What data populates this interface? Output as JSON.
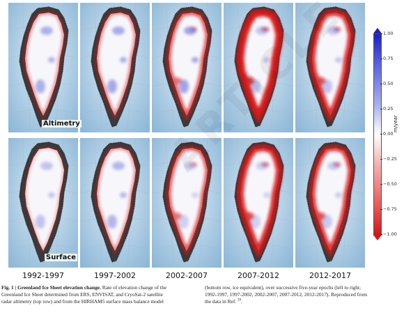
{
  "figure": {
    "row_labels": {
      "top": "Altimetry",
      "bottom": "Surface"
    },
    "epochs": [
      "1992-1997",
      "1997-2002",
      "2002-2007",
      "2007-2012",
      "2012-2017"
    ],
    "colorbar": {
      "unit": "m/year",
      "ticks": [
        "1.00",
        "0.75",
        "0.50",
        "0.25",
        "0.00",
        "−0.25",
        "−0.50",
        "−0.75",
        "−1.00"
      ],
      "colors": {
        "positive": "#1a22c8",
        "zero": "#ffffff",
        "negative": "#d61414"
      }
    },
    "panels": {
      "altimetry": [
        {
          "epoch": "1992-1997",
          "thinning_level": 0.3,
          "thickening_level": 0.3
        },
        {
          "epoch": "1997-2002",
          "thinning_level": 0.35,
          "thickening_level": 0.35
        },
        {
          "epoch": "2002-2007",
          "thinning_level": 0.55,
          "thickening_level": 0.4
        },
        {
          "epoch": "2007-2012",
          "thinning_level": 0.95,
          "thickening_level": 0.15
        },
        {
          "epoch": "2012-2017",
          "thinning_level": 0.8,
          "thickening_level": 0.15
        }
      ],
      "surface": [
        {
          "epoch": "1992-1997",
          "thinning_level": 0.15,
          "thickening_level": 0.15
        },
        {
          "epoch": "1997-2002",
          "thinning_level": 0.3,
          "thickening_level": 0.25
        },
        {
          "epoch": "2002-2007",
          "thinning_level": 0.55,
          "thickening_level": 0.05
        },
        {
          "epoch": "2007-2012",
          "thinning_level": 0.85,
          "thickening_level": 0.05
        },
        {
          "epoch": "2012-2017",
          "thinning_level": 0.75,
          "thickening_level": 0.1
        }
      ]
    },
    "caption": {
      "label": "Fig. 1 | Greenland Ice Sheet elevation change.",
      "left_lines": [
        " Rate of elevation change of the",
        "Greenland Ice Sheet determined from ERS, ENVISAT, and CryoSat-2 satellite",
        "radar altimetry (top row) and from the HIRHAM5 surface mass balance model"
      ],
      "right_lines": [
        "(bottom row, ice equivalent), over successive five-year epochs (left to right;",
        "1992-1997, 1997-2002, 2002-2007, 2007-2012, 2012-2017). Reproduced from",
        "the data in Ref. "
      ],
      "ref_superscript": "29",
      "ref_end": "."
    },
    "watermark": "ARTICLE PREVIEW"
  }
}
